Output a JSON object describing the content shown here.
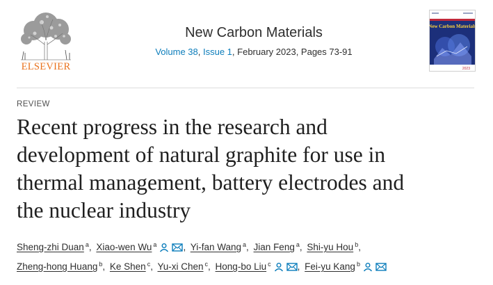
{
  "publisher": {
    "logo_word": "ELSEVIER"
  },
  "journal": {
    "title": "New Carbon Materials",
    "volume": "Volume 38",
    "issue": "Issue 1",
    "date_pages": ", February 2023, Pages 73-91",
    "cover_title": "New Carbon Materials",
    "cover_year": "2023"
  },
  "article": {
    "type": "REVIEW",
    "title_lines": [
      "Recent progress in the research and",
      "development of natural graphite for use in",
      "thermal management, battery electrodes and",
      "the nuclear industry"
    ]
  },
  "authors": [
    {
      "name": "Sheng-zhi Duan",
      "aff": "a"
    },
    {
      "name": "Xiao-wen Wu",
      "aff": "a"
    },
    {
      "name": "Yi-fan Wang",
      "aff": "a"
    },
    {
      "name": "Jian Feng",
      "aff": "a"
    },
    {
      "name": "Shi-yu Hou",
      "aff": "b"
    },
    {
      "name": "Zheng-hong Huang",
      "aff": "b"
    },
    {
      "name": "Ke Shen",
      "aff": "c"
    },
    {
      "name": "Yu-xi Chen",
      "aff": "c"
    },
    {
      "name": "Hong-bo Liu",
      "aff": "c"
    },
    {
      "name": "Fei-yu Kang",
      "aff": "b"
    }
  ],
  "colors": {
    "link": "#0c7dbb",
    "publisher_orange": "#e9711c",
    "icon": "#0c7dbb"
  }
}
